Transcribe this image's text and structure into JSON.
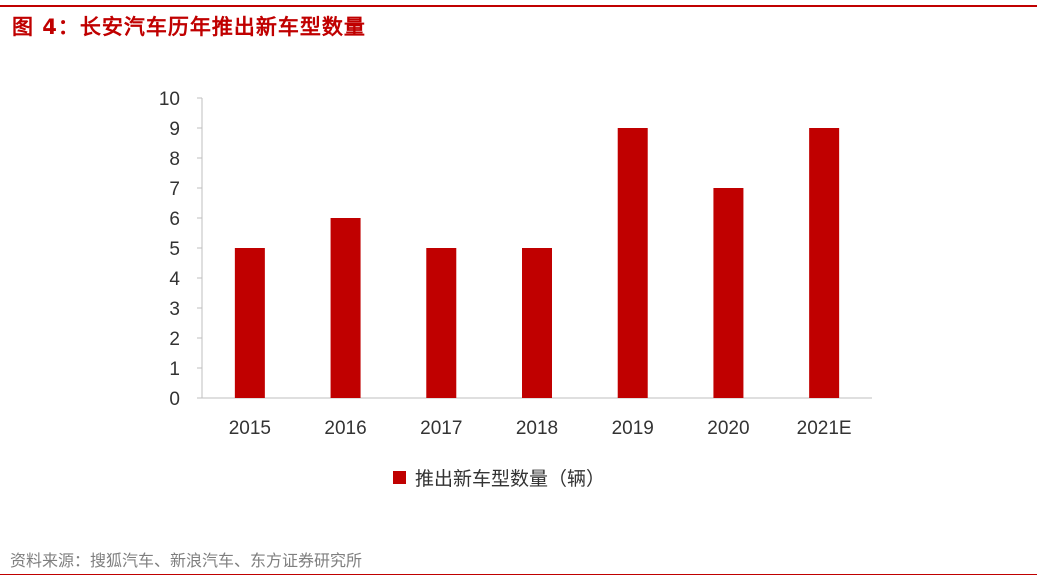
{
  "figure": {
    "title": "图 4：长安汽车历年推出新车型数量",
    "source": "资料来源：搜狐汽车、新浪汽车、东方证券研究所"
  },
  "colors": {
    "accent": "#C00000",
    "bar": "#C00000",
    "axis": "#BFBFBF",
    "source_text": "#7F7F7F"
  },
  "chart_data": {
    "type": "bar",
    "title": "",
    "xlabel": "",
    "ylabel": "",
    "categories": [
      "2015",
      "2016",
      "2017",
      "2018",
      "2019",
      "2020",
      "2021E"
    ],
    "series": [
      {
        "name": "推出新车型数量（辆）",
        "values": [
          5,
          6,
          5,
          5,
          9,
          7,
          9
        ]
      }
    ],
    "ylim": [
      0,
      10
    ],
    "yticks": [
      0,
      1,
      2,
      3,
      4,
      5,
      6,
      7,
      8,
      9,
      10
    ],
    "grid": false,
    "legend": "bottom-center"
  }
}
